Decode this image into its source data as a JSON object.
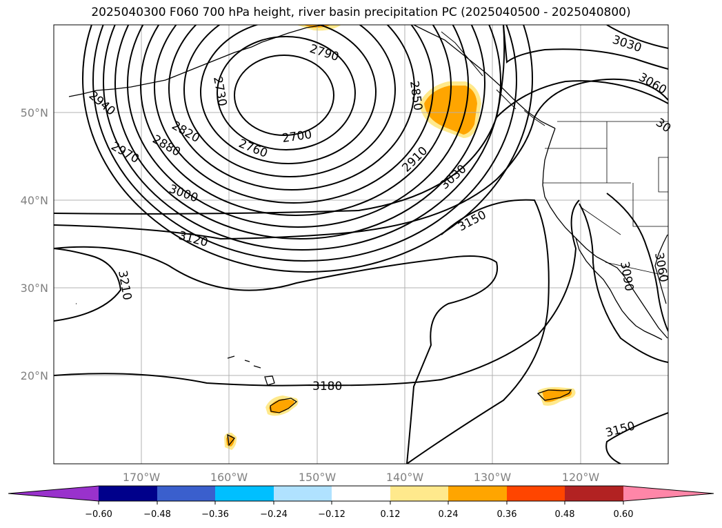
{
  "title": "2025040300 F060 700 hPa height, river basin precipitation PC (2025040500 - 2025040800)",
  "map": {
    "lat_labels": [
      "50°N",
      "40°N",
      "30°N",
      "20°N"
    ],
    "lon_labels": [
      "170°W",
      "160°W",
      "150°W",
      "140°W",
      "130°W",
      "120°W"
    ],
    "contour_labels": [
      "2790",
      "2730",
      "2850",
      "2940",
      "2820",
      "2760",
      "2700",
      "2880",
      "2970",
      "2910",
      "3030",
      "3000",
      "3150",
      "3120",
      "3210",
      "3180",
      "3030",
      "3060",
      "30",
      "3060",
      "3090",
      "3150"
    ],
    "colors": {
      "contour": "#000000",
      "grid": "#b0b0b0",
      "precip_light": "#ffe98c",
      "precip_mid": "#ffa500"
    }
  },
  "colorbar": {
    "ticks": [
      "−0.60",
      "−0.48",
      "−0.36",
      "−0.24",
      "−0.12",
      "0.12",
      "0.24",
      "0.36",
      "0.48",
      "0.60"
    ],
    "colors": [
      "#9932cc",
      "#00008b",
      "#3a5fcd",
      "#00bfff",
      "#b0e2ff",
      "#ffffff",
      "#ffe98c",
      "#ffa500",
      "#ff4500",
      "#b22222",
      "#ff86a8"
    ]
  }
}
